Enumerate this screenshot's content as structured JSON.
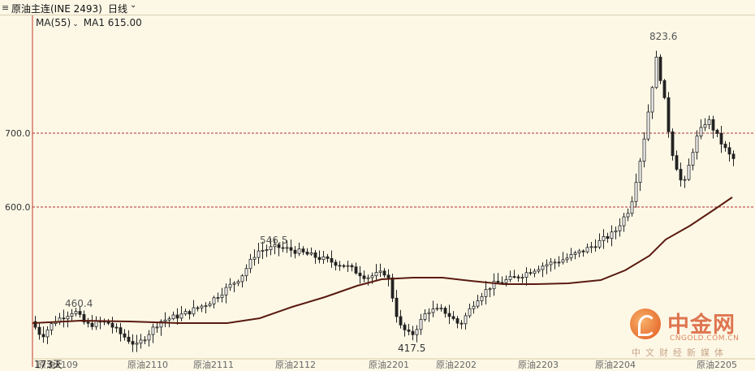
{
  "header": {
    "grip_icon": "grip-lines-icon",
    "title": "原油主连(INE 2493)",
    "period": "日线",
    "chevron_icon": "chevron-down-icon"
  },
  "legend": {
    "ma_label": "MA(55)",
    "ma_value": "MA1 615.00"
  },
  "annotations": {
    "high": "823.6",
    "peak1": "546.5",
    "left_high": "460.4",
    "low": "417.5"
  },
  "watermark": {
    "brand": "中金网",
    "site": "CNGOLD.COM.CN",
    "slogan": "中文财经新媒体"
  },
  "bottom_left_label": "173天",
  "chart_data": {
    "type": "candlestick",
    "yaxis_labels": [
      "700.0",
      "600.0"
    ],
    "y_gridlines": [
      700,
      600
    ],
    "x_labels": [
      "原油2109",
      "原油2110",
      "原油2111",
      "原油2112",
      "原油2201",
      "原油2202",
      "原油2203",
      "原油2204",
      "原油2205"
    ],
    "colors": {
      "up": "#ffffff",
      "down": "#222222",
      "ma": "#5a1a10",
      "grid": "#b03030",
      "axis": "#c0392b"
    },
    "points": [
      {
        "price": 823.6,
        "label": "823.6"
      },
      {
        "price": 546.5,
        "label": "546.5"
      },
      {
        "price": 460.4,
        "label": "460.4"
      },
      {
        "price": 417.5,
        "label": "417.5"
      }
    ],
    "ma": {
      "name": "MA(55)",
      "value": 615.0
    }
  }
}
